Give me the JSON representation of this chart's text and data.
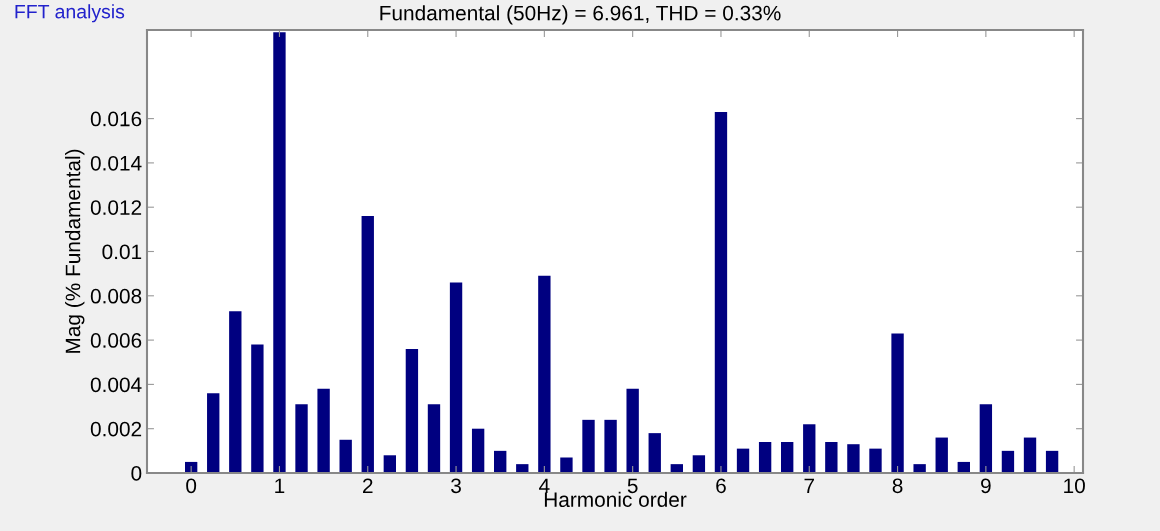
{
  "chart_data": {
    "type": "bar",
    "title": "Fundamental (50Hz) = 6.961, THD = 0.33%",
    "xlabel": "Harmonic order",
    "ylabel": "Mag (% Fundamental)",
    "annotations": [
      "FFT analysis"
    ],
    "x": [
      0,
      0.25,
      0.5,
      0.75,
      1,
      1.25,
      1.5,
      1.75,
      2,
      2.25,
      2.5,
      2.75,
      3,
      3.25,
      3.5,
      3.75,
      4,
      4.25,
      4.5,
      4.75,
      5,
      5.25,
      5.5,
      5.75,
      6,
      6.25,
      6.5,
      6.75,
      7,
      7.25,
      7.5,
      7.75,
      8,
      8.25,
      8.5,
      8.75,
      9,
      9.25,
      9.5,
      9.75
    ],
    "values": [
      0.0005,
      0.0036,
      0.0073,
      0.0058,
      0.0199,
      0.0031,
      0.0038,
      0.0015,
      0.0116,
      0.0008,
      0.0056,
      0.0031,
      0.0086,
      0.002,
      0.001,
      0.0004,
      0.0089,
      0.0007,
      0.0024,
      0.0024,
      0.0038,
      0.0018,
      0.0004,
      0.0008,
      0.0163,
      0.0011,
      0.0014,
      0.0014,
      0.0022,
      0.0014,
      0.0013,
      0.0011,
      0.0063,
      0.0004,
      0.0016,
      0.0005,
      0.0031,
      0.001,
      0.0016,
      0.001
    ],
    "color": "#000080",
    "xlim": [
      -0.5,
      10.1
    ],
    "xticks": [
      0,
      1,
      2,
      3,
      4,
      5,
      6,
      7,
      8,
      9,
      10
    ],
    "ylim": [
      0,
      0.02
    ],
    "yticks": [
      0,
      0.002,
      0.004,
      0.006,
      0.008,
      {
        "value": 0.01,
        "label": "0.01"
      },
      0.012,
      0.014,
      0.016
    ],
    "grid": false,
    "legend": false
  }
}
